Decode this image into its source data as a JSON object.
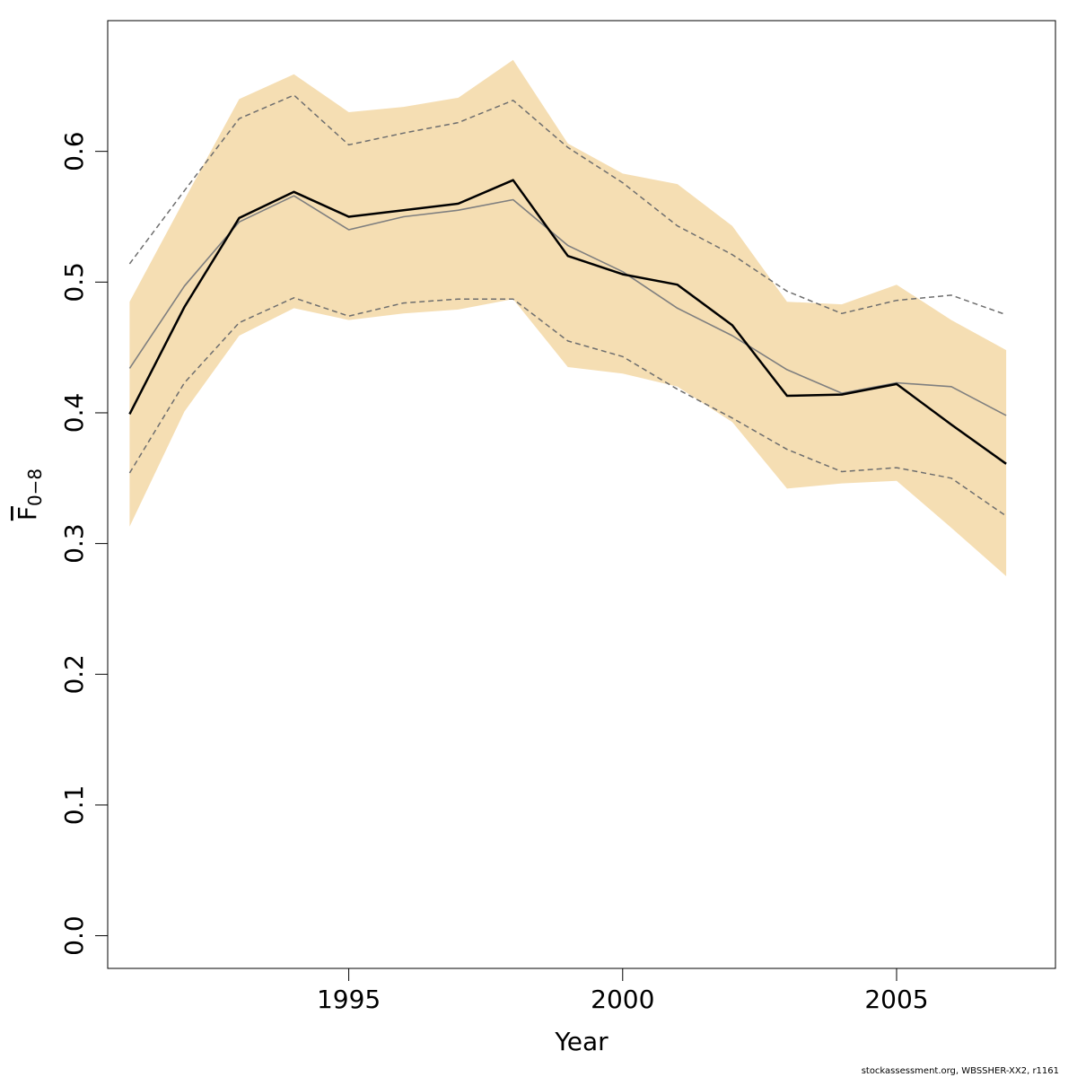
{
  "chart_data": {
    "type": "line",
    "xlabel": "Year",
    "ylabel": {
      "base": "F",
      "subscript": "0−8"
    },
    "xlim": [
      1990.6,
      2007.9
    ],
    "ylim": [
      -0.025,
      0.7
    ],
    "x_ticks": [
      1995,
      2000,
      2005
    ],
    "y_ticks": [
      0.0,
      0.1,
      0.2,
      0.3,
      0.4,
      0.5,
      0.6
    ],
    "y_tick_labels": [
      "0.0",
      "0.1",
      "0.2",
      "0.3",
      "0.4",
      "0.5",
      "0.6"
    ],
    "x": [
      1991,
      1992,
      1993,
      1994,
      1995,
      1996,
      1997,
      1998,
      1999,
      2000,
      2001,
      2002,
      2003,
      2004,
      2005,
      2006,
      2007
    ],
    "band": {
      "lower": [
        0.313,
        0.401,
        0.459,
        0.48,
        0.471,
        0.476,
        0.479,
        0.487,
        0.435,
        0.43,
        0.42,
        0.393,
        0.342,
        0.346,
        0.348,
        0.312,
        0.275
      ],
      "upper": [
        0.485,
        0.563,
        0.64,
        0.659,
        0.63,
        0.634,
        0.641,
        0.67,
        0.606,
        0.583,
        0.575,
        0.543,
        0.485,
        0.483,
        0.498,
        0.471,
        0.448
      ],
      "color": "#F5DEB3"
    },
    "series": [
      {
        "values": [
          0.434,
          0.497,
          0.546,
          0.566,
          0.54,
          0.55,
          0.555,
          0.563,
          0.528,
          0.508,
          0.48,
          0.459,
          0.433,
          0.415,
          0.423,
          0.42,
          0.398
        ],
        "color": "#7f7f7f",
        "style": "solid"
      },
      {
        "values": [
          0.399,
          0.481,
          0.549,
          0.569,
          0.55,
          0.555,
          0.56,
          0.578,
          0.52,
          0.506,
          0.498,
          0.467,
          0.413,
          0.414,
          0.422,
          0.391,
          0.361
        ],
        "color": "#000000",
        "style": "solid"
      },
      {
        "values": [
          0.514,
          0.57,
          0.625,
          0.643,
          0.605,
          0.614,
          0.622,
          0.639,
          0.603,
          0.576,
          0.543,
          0.521,
          0.493,
          0.476,
          0.486,
          0.49,
          0.475
        ],
        "color": "#6e6e6e",
        "style": "dashed"
      },
      {
        "values": [
          0.354,
          0.423,
          0.469,
          0.488,
          0.474,
          0.484,
          0.487,
          0.487,
          0.455,
          0.443,
          0.418,
          0.396,
          0.372,
          0.355,
          0.358,
          0.35,
          0.321
        ],
        "color": "#6e6e6e",
        "style": "dashed"
      }
    ],
    "grid": false
  },
  "footer": "stockassessment.org, WBSSHER-XX2, r1161"
}
